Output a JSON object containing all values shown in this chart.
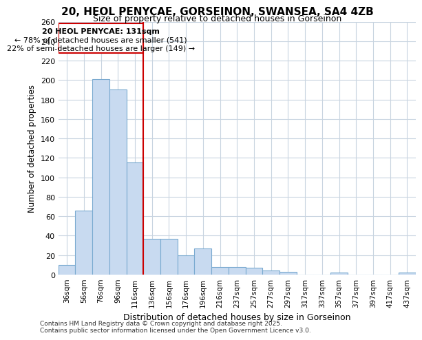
{
  "title1": "20, HEOL PENYCAE, GORSEINON, SWANSEA, SA4 4ZB",
  "title2": "Size of property relative to detached houses in Gorseinon",
  "xlabel": "Distribution of detached houses by size in Gorseinon",
  "ylabel": "Number of detached properties",
  "categories": [
    "36sqm",
    "56sqm",
    "76sqm",
    "96sqm",
    "116sqm",
    "136sqm",
    "156sqm",
    "176sqm",
    "196sqm",
    "216sqm",
    "237sqm",
    "257sqm",
    "277sqm",
    "297sqm",
    "317sqm",
    "337sqm",
    "357sqm",
    "377sqm",
    "397sqm",
    "417sqm",
    "437sqm"
  ],
  "values": [
    10,
    66,
    201,
    190,
    115,
    37,
    37,
    20,
    27,
    8,
    8,
    7,
    4,
    3,
    0,
    0,
    2,
    0,
    0,
    0,
    2
  ],
  "bar_color": "#c8daf0",
  "bar_edge_color": "#7aaad0",
  "annotation_line1": "20 HEOL PENYCAE: 131sqm",
  "annotation_line2": "← 78% of detached houses are smaller (541)",
  "annotation_line3": "22% of semi-detached houses are larger (149) →",
  "vline_color": "#cc0000",
  "ylim": [
    0,
    260
  ],
  "yticks": [
    0,
    20,
    40,
    60,
    80,
    100,
    120,
    140,
    160,
    180,
    200,
    220,
    240,
    260
  ],
  "footer1": "Contains HM Land Registry data © Crown copyright and database right 2025.",
  "footer2": "Contains public sector information licensed under the Open Government Licence v3.0.",
  "bg_color": "#ffffff",
  "plot_bg_color": "#ffffff",
  "grid_color": "#c8d4e0",
  "vline_x_index": 5
}
